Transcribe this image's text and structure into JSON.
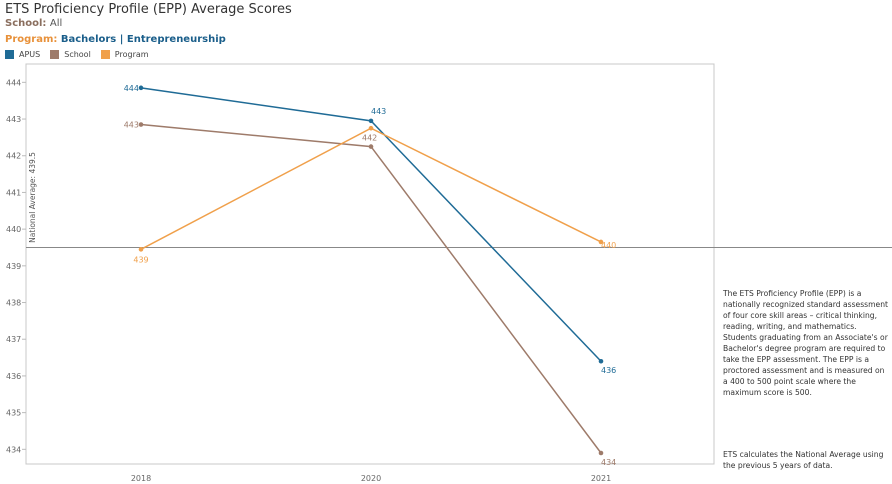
{
  "chart_data": {
    "type": "line",
    "title": "ETS Proficiency Profile (EPP) Average Scores",
    "filters": {
      "school_label": "School:",
      "school_value": "All",
      "program_label": "Program:",
      "program_value": "Bachelors | Entrepreneurship"
    },
    "categories": [
      "2018",
      "2020",
      "2021"
    ],
    "series": [
      {
        "name": "APUS",
        "color": "#1f6b96",
        "values": [
          443.85,
          442.95,
          436.4
        ],
        "labels": [
          "444",
          "443",
          "436"
        ]
      },
      {
        "name": "School",
        "color": "#9e7b6a",
        "values": [
          442.85,
          442.25,
          433.9
        ],
        "labels": [
          "443",
          "442",
          "434"
        ]
      },
      {
        "name": "Program",
        "color": "#f0a04b",
        "values": [
          439.45,
          442.75,
          439.65
        ],
        "labels": [
          "439",
          "",
          "440"
        ]
      }
    ],
    "reference_line": {
      "label": "National Average: 439.5",
      "value": 439.5,
      "color": "#888888"
    },
    "yticks": [
      434,
      435,
      436,
      437,
      438,
      439,
      440,
      441,
      442,
      443,
      444
    ],
    "ylim": [
      433.6,
      444.5
    ],
    "legend_position": "top-left"
  },
  "notes": {
    "description": "The ETS Proficiency Profile (EPP) is a nationally recognized standard assessment of four core skill areas – critical thinking, reading, writing, and mathematics.  Students graduating from an Associate's or Bachelor's degree program are required to take the EPP assessment.  The EPP is a proctored assessment and is measured on a 400 to 500 point scale where the maximum score is 500.",
    "national_average": "ETS calculates the National Average using the previous 5 years of data."
  }
}
